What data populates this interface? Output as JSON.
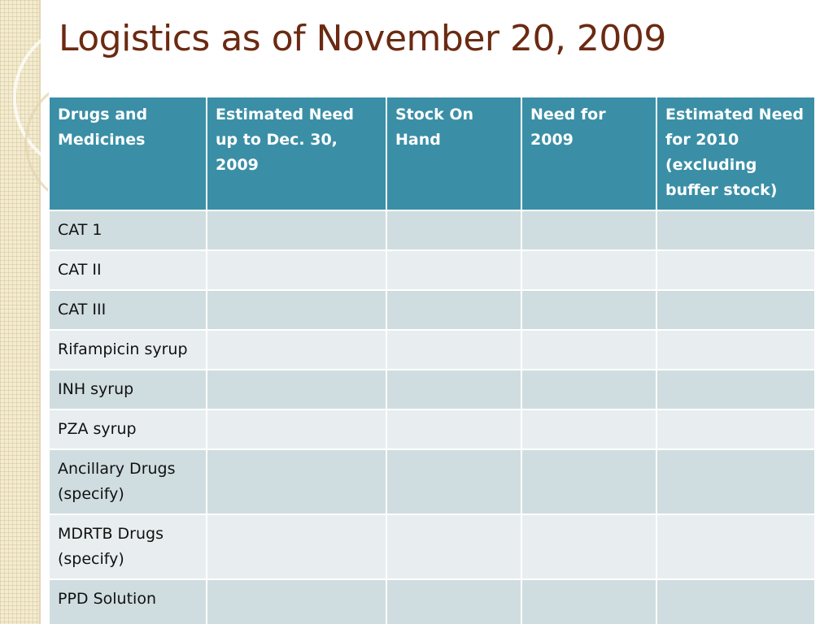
{
  "title": "Logistics as of November 20, 2009",
  "table": {
    "headers": [
      "Drugs and Medicines",
      "Estimated Need up to Dec. 30, 2009",
      "Stock On Hand",
      "Need for 2009",
      "Estimated Need for 2010 (excluding buffer stock)"
    ],
    "rows": [
      [
        "CAT 1",
        "",
        "",
        "",
        ""
      ],
      [
        "CAT II",
        "",
        "",
        "",
        ""
      ],
      [
        "CAT III",
        "",
        "",
        "",
        ""
      ],
      [
        "Rifampicin syrup",
        "",
        "",
        "",
        ""
      ],
      [
        "INH syrup",
        "",
        "",
        "",
        ""
      ],
      [
        "PZA syrup",
        "",
        "",
        "",
        ""
      ],
      [
        "Ancillary Drugs (specify)",
        "",
        "",
        "",
        ""
      ],
      [
        "MDRTB Drugs (specify)",
        "",
        "",
        "",
        ""
      ],
      [
        "PPD Solution",
        "",
        "",
        "",
        ""
      ]
    ]
  },
  "colors": {
    "title": "#6b2a12",
    "header_bg": "#3a8fa6",
    "row_dark": "#cfdde0",
    "row_light": "#e8eeef",
    "side_band": "#f3ecd2"
  }
}
